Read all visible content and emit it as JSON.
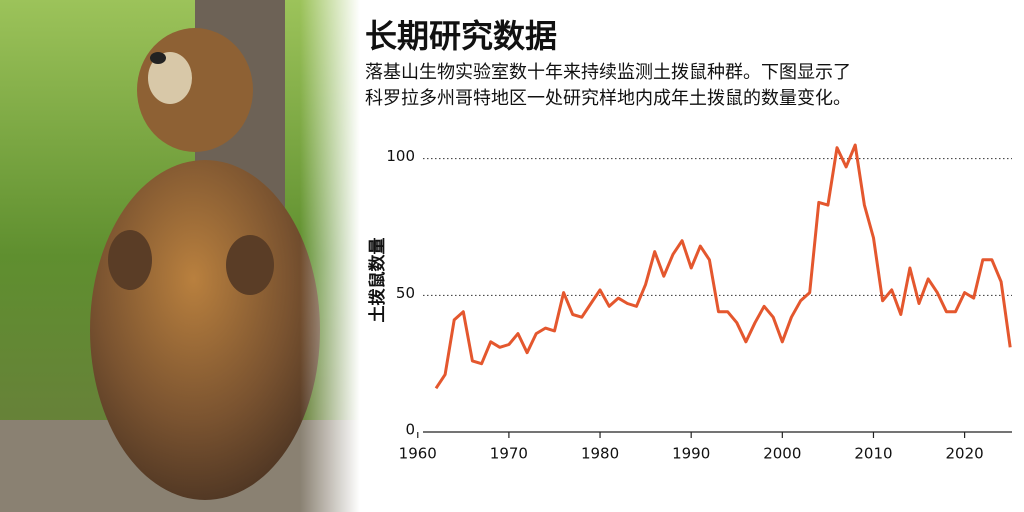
{
  "chart_data": {
    "type": "line",
    "title": "长期研究数据",
    "subtitle": [
      "落基山生物实验室数十年来持续监测土拨鼠种群。下图显示了",
      "科罗拉多州哥特地区一处研究样地内成年土拨鼠的数量变化。"
    ],
    "y_label": "土拨鼠数量",
    "x": [
      1962,
      1963,
      1964,
      1965,
      1966,
      1967,
      1968,
      1969,
      1970,
      1971,
      1972,
      1973,
      1974,
      1975,
      1976,
      1977,
      1978,
      1979,
      1980,
      1981,
      1982,
      1983,
      1984,
      1985,
      1986,
      1987,
      1988,
      1989,
      1990,
      1991,
      1992,
      1993,
      1994,
      1995,
      1996,
      1997,
      1998,
      1999,
      2000,
      2001,
      2002,
      2003,
      2004,
      2005,
      2006,
      2007,
      2008,
      2009,
      2010,
      2011,
      2012,
      2013,
      2014,
      2015,
      2016,
      2017,
      2018,
      2019,
      2020,
      2021,
      2022,
      2023,
      2024,
      2025
    ],
    "series": [
      {
        "name": "土拨鼠数量",
        "color": "#e4572e",
        "values": [
          16,
          21,
          41,
          44,
          26,
          25,
          33,
          31,
          32,
          36,
          29,
          36,
          38,
          37,
          51,
          43,
          42,
          47,
          52,
          46,
          49,
          47,
          46,
          54,
          66,
          57,
          65,
          70,
          60,
          68,
          63,
          44,
          44,
          40,
          33,
          40,
          46,
          42,
          33,
          42,
          48,
          51,
          84,
          83,
          104,
          97,
          105,
          83,
          71,
          48,
          52,
          43,
          60,
          47,
          56,
          51,
          44,
          44,
          51,
          49,
          63,
          63,
          55,
          31
        ]
      }
    ],
    "xlim": [
      1958.6,
      2025.2
    ],
    "xticks": [
      1960,
      1970,
      1980,
      1990,
      2000,
      2010,
      2020
    ],
    "ylim": [
      0,
      105
    ],
    "yticks": [
      0,
      50,
      100
    ],
    "grid": true
  }
}
